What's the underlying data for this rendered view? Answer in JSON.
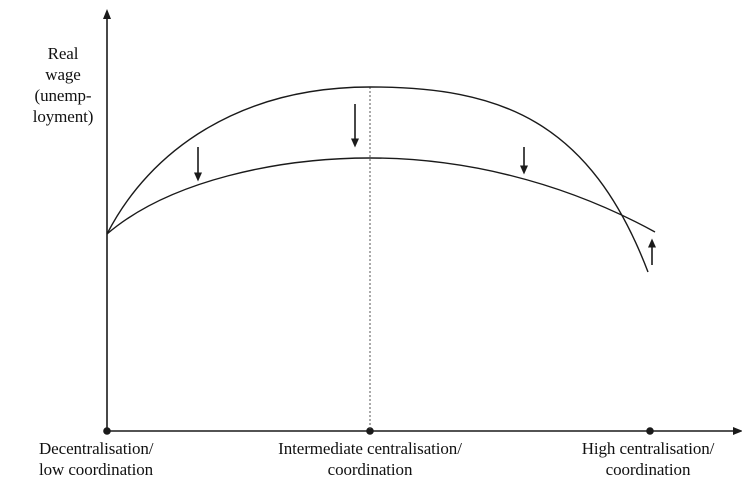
{
  "y_axis_label": [
    "Real",
    "wage",
    "(unemp-",
    "loyment)"
  ],
  "x_categories": [
    {
      "line1": "Decentralisation/",
      "line2": "low coordination"
    },
    {
      "line1": "Intermediate centralisation/",
      "line2": "coordination"
    },
    {
      "line1": "High centralisation/",
      "line2": "coordination"
    }
  ],
  "curves": [
    {
      "id": "upper-hump",
      "shape": "hump",
      "peak_category": 1
    },
    {
      "id": "lower-hump",
      "shape": "hump",
      "peak_category": 1
    }
  ],
  "shift_arrows": [
    {
      "direction": "down"
    },
    {
      "direction": "down"
    },
    {
      "direction": "down"
    },
    {
      "direction": "up"
    }
  ],
  "colors": {
    "line": "#1a1a1a",
    "text": "#111111",
    "background": "#ffffff"
  }
}
